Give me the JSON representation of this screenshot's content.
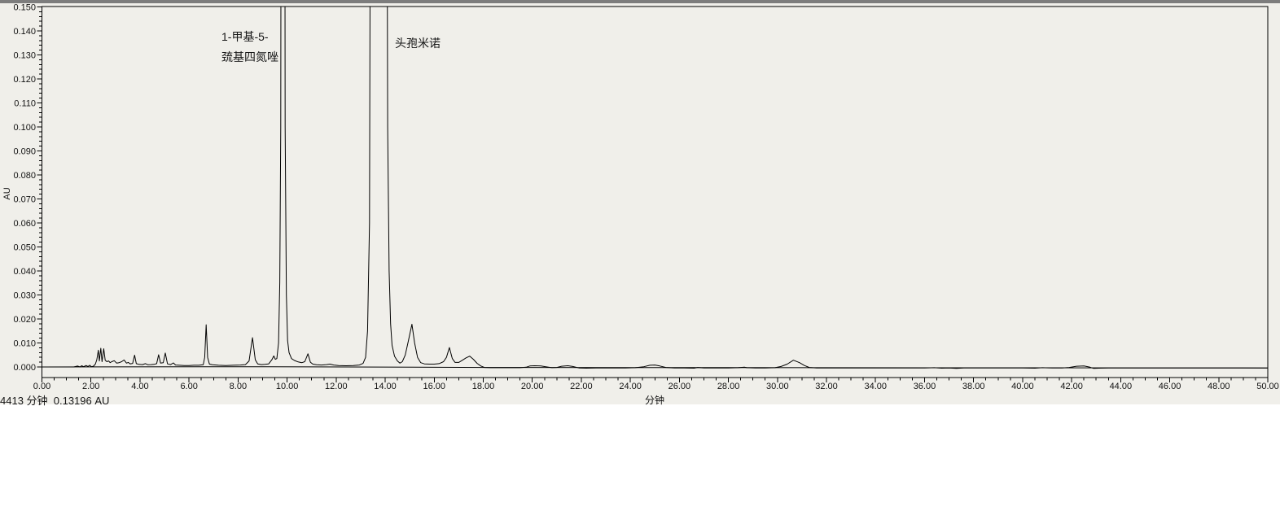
{
  "footer_note": "4413 分钟  0.13196 AU",
  "chart_data": {
    "type": "line",
    "title": "",
    "xlabel": "分钟",
    "ylabel": "AU",
    "xlim": [
      0,
      50
    ],
    "ylim": [
      -0.0045,
      0.15
    ],
    "x_major_tick_step": 2.0,
    "x_minor_tick_step": 0.5,
    "y_major_tick_step": 0.01,
    "y_minor_tick_step": 0.002,
    "grid": false,
    "line_color": "#000000",
    "annotations": [
      {
        "label_lines": [
          "1-甲基-5-",
          "巯基四氮唑"
        ],
        "peak_time_min": 9.8,
        "peak_off_scale": true
      },
      {
        "label_lines": [
          "头孢米诺"
        ],
        "peak_time_min": 13.7,
        "peak_off_scale": true
      }
    ],
    "series": [
      {
        "name": "signal",
        "points": [
          [
            0,
            0
          ],
          [
            0.5,
            0
          ],
          [
            1.0,
            0
          ],
          [
            1.3,
            0
          ],
          [
            1.45,
            0.0004
          ],
          [
            1.55,
            0
          ],
          [
            1.62,
            0.0005
          ],
          [
            1.7,
            0.0001
          ],
          [
            1.8,
            0.0006
          ],
          [
            1.88,
            0.0002
          ],
          [
            1.95,
            0.0007
          ],
          [
            2.02,
            0.0001
          ],
          [
            2.1,
            0.0003
          ],
          [
            2.18,
            0.0012
          ],
          [
            2.24,
            0.003
          ],
          [
            2.3,
            0.007
          ],
          [
            2.34,
            0.0025
          ],
          [
            2.4,
            0.0078
          ],
          [
            2.45,
            0.0022
          ],
          [
            2.52,
            0.0076
          ],
          [
            2.58,
            0.0028
          ],
          [
            2.65,
            0.0022
          ],
          [
            2.72,
            0.0025
          ],
          [
            2.78,
            0.0018
          ],
          [
            2.85,
            0.0022
          ],
          [
            2.95,
            0.0026
          ],
          [
            3.05,
            0.0016
          ],
          [
            3.15,
            0.0018
          ],
          [
            3.25,
            0.0022
          ],
          [
            3.35,
            0.0029
          ],
          [
            3.45,
            0.0016
          ],
          [
            3.52,
            0.0019
          ],
          [
            3.6,
            0.0013
          ],
          [
            3.7,
            0.0015
          ],
          [
            3.78,
            0.0049
          ],
          [
            3.85,
            0.0014
          ],
          [
            3.95,
            0.0011
          ],
          [
            4.1,
            0.001
          ],
          [
            4.22,
            0.0014
          ],
          [
            4.32,
            0.0009
          ],
          [
            4.45,
            0.001
          ],
          [
            4.58,
            0.0011
          ],
          [
            4.68,
            0.0014
          ],
          [
            4.76,
            0.0051
          ],
          [
            4.84,
            0.0016
          ],
          [
            4.95,
            0.0018
          ],
          [
            5.03,
            0.0058
          ],
          [
            5.12,
            0.0013
          ],
          [
            5.25,
            0.001
          ],
          [
            5.36,
            0.0017
          ],
          [
            5.45,
            0.0008
          ],
          [
            5.6,
            0.0007
          ],
          [
            5.8,
            0.0006
          ],
          [
            6.0,
            0.0006
          ],
          [
            6.2,
            0.0007
          ],
          [
            6.4,
            0.0007
          ],
          [
            6.58,
            0.0009
          ],
          [
            6.64,
            0.004
          ],
          [
            6.7,
            0.0176
          ],
          [
            6.76,
            0.004
          ],
          [
            6.83,
            0.0012
          ],
          [
            6.95,
            0.0009
          ],
          [
            7.2,
            0.0007
          ],
          [
            7.5,
            0.0006
          ],
          [
            7.8,
            0.0007
          ],
          [
            8.1,
            0.0008
          ],
          [
            8.3,
            0.001
          ],
          [
            8.45,
            0.0025
          ],
          [
            8.59,
            0.0122
          ],
          [
            8.7,
            0.003
          ],
          [
            8.8,
            0.0013
          ],
          [
            8.95,
            0.001
          ],
          [
            9.1,
            0.0011
          ],
          [
            9.25,
            0.0013
          ],
          [
            9.38,
            0.003
          ],
          [
            9.46,
            0.0046
          ],
          [
            9.52,
            0.0032
          ],
          [
            9.58,
            0.0035
          ],
          [
            9.65,
            0.01
          ],
          [
            9.7,
            0.035
          ],
          [
            9.74,
            0.1
          ],
          [
            9.76,
            0.28
          ],
          [
            9.9,
            0.28
          ],
          [
            9.92,
            0.1
          ],
          [
            9.97,
            0.03
          ],
          [
            10.02,
            0.011
          ],
          [
            10.08,
            0.006
          ],
          [
            10.18,
            0.0035
          ],
          [
            10.3,
            0.0027
          ],
          [
            10.45,
            0.0021
          ],
          [
            10.6,
            0.0018
          ],
          [
            10.72,
            0.0022
          ],
          [
            10.85,
            0.0055
          ],
          [
            10.95,
            0.002
          ],
          [
            11.05,
            0.0012
          ],
          [
            11.2,
            0.0009
          ],
          [
            11.4,
            0.0008
          ],
          [
            11.6,
            0.001
          ],
          [
            11.75,
            0.0012
          ],
          [
            11.9,
            0.0008
          ],
          [
            12.1,
            0.0006
          ],
          [
            12.4,
            0.0005
          ],
          [
            12.7,
            0.0006
          ],
          [
            12.95,
            0.0008
          ],
          [
            13.1,
            0.0015
          ],
          [
            13.2,
            0.004
          ],
          [
            13.28,
            0.015
          ],
          [
            13.36,
            0.06
          ],
          [
            13.41,
            0.28
          ],
          [
            14.06,
            0.28
          ],
          [
            14.1,
            0.1
          ],
          [
            14.16,
            0.04
          ],
          [
            14.22,
            0.018
          ],
          [
            14.28,
            0.009
          ],
          [
            14.38,
            0.0045
          ],
          [
            14.5,
            0.0025
          ],
          [
            14.6,
            0.0016
          ],
          [
            14.7,
            0.0022
          ],
          [
            14.82,
            0.005
          ],
          [
            14.95,
            0.011
          ],
          [
            15.09,
            0.0178
          ],
          [
            15.2,
            0.01
          ],
          [
            15.32,
            0.004
          ],
          [
            15.45,
            0.0018
          ],
          [
            15.6,
            0.0013
          ],
          [
            15.8,
            0.0012
          ],
          [
            16.0,
            0.0012
          ],
          [
            16.2,
            0.0014
          ],
          [
            16.38,
            0.0022
          ],
          [
            16.5,
            0.004
          ],
          [
            16.62,
            0.0081
          ],
          [
            16.74,
            0.0035
          ],
          [
            16.85,
            0.0019
          ],
          [
            17.0,
            0.0019
          ],
          [
            17.15,
            0.0028
          ],
          [
            17.3,
            0.0038
          ],
          [
            17.45,
            0.0045
          ],
          [
            17.6,
            0.0032
          ],
          [
            17.75,
            0.0015
          ],
          [
            17.9,
            0.0004
          ],
          [
            18.05,
            -0.0002
          ],
          [
            18.3,
            -0.0003
          ],
          [
            18.6,
            -0.0003
          ],
          [
            18.9,
            -0.0003
          ],
          [
            19.2,
            -0.0003
          ],
          [
            19.5,
            -0.0003
          ],
          [
            19.75,
            -0.0001
          ],
          [
            19.9,
            0.0004
          ],
          [
            20.1,
            0.0005
          ],
          [
            20.35,
            0.0004
          ],
          [
            20.55,
            0.0001
          ],
          [
            20.8,
            -0.0003
          ],
          [
            21.0,
            -0.0002
          ],
          [
            21.2,
            0.0003
          ],
          [
            21.45,
            0.0005
          ],
          [
            21.65,
            0.0002
          ],
          [
            21.9,
            -0.0004
          ],
          [
            22.2,
            -0.0005
          ],
          [
            22.6,
            -0.0004
          ],
          [
            23.0,
            -0.0004
          ],
          [
            23.4,
            -0.0004
          ],
          [
            23.8,
            -0.0004
          ],
          [
            24.2,
            -0.0003
          ],
          [
            24.55,
            0.0001
          ],
          [
            24.8,
            0.0007
          ],
          [
            25.0,
            0.0008
          ],
          [
            25.2,
            0.0004
          ],
          [
            25.45,
            -0.0002
          ],
          [
            25.8,
            -0.0004
          ],
          [
            26.2,
            -0.0004
          ],
          [
            26.6,
            -0.0005
          ],
          [
            26.75,
            -0.0002
          ],
          [
            27.0,
            -0.0004
          ],
          [
            27.5,
            -0.0004
          ],
          [
            28.0,
            -0.0004
          ],
          [
            28.4,
            -0.0003
          ],
          [
            28.65,
            -0.0001
          ],
          [
            28.75,
            -0.0003
          ],
          [
            29.1,
            -0.0004
          ],
          [
            29.5,
            -0.0004
          ],
          [
            29.9,
            -0.0003
          ],
          [
            30.15,
            0.0002
          ],
          [
            30.4,
            0.0012
          ],
          [
            30.65,
            0.0028
          ],
          [
            30.9,
            0.0018
          ],
          [
            31.1,
            0.0006
          ],
          [
            31.3,
            -0.0002
          ],
          [
            31.6,
            -0.0004
          ],
          [
            32.0,
            -0.0004
          ],
          [
            32.5,
            -0.0004
          ],
          [
            33.0,
            -0.0004
          ],
          [
            33.5,
            -0.0004
          ],
          [
            34.0,
            -0.0004
          ],
          [
            34.5,
            -0.0004
          ],
          [
            35.0,
            -0.0004
          ],
          [
            35.5,
            -0.0004
          ],
          [
            36.0,
            -0.0004
          ],
          [
            36.4,
            -0.0003
          ],
          [
            36.7,
            -0.0005
          ],
          [
            37.0,
            -0.0004
          ],
          [
            37.3,
            -0.0006
          ],
          [
            37.6,
            -0.0004
          ],
          [
            38.0,
            -0.0004
          ],
          [
            38.5,
            -0.0004
          ],
          [
            39.0,
            -0.0004
          ],
          [
            39.5,
            -0.0004
          ],
          [
            40.0,
            -0.0004
          ],
          [
            40.5,
            -0.0005
          ],
          [
            40.8,
            -0.0003
          ],
          [
            41.2,
            -0.0004
          ],
          [
            41.6,
            -0.0004
          ],
          [
            41.9,
            -0.0002
          ],
          [
            42.2,
            0.0003
          ],
          [
            42.5,
            0.0004
          ],
          [
            42.75,
            -0.0001
          ],
          [
            42.9,
            -0.0006
          ],
          [
            43.1,
            -0.0005
          ],
          [
            43.5,
            -0.0004
          ],
          [
            44.0,
            -0.0004
          ],
          [
            44.5,
            -0.0004
          ],
          [
            45.0,
            -0.0004
          ],
          [
            45.5,
            -0.0004
          ],
          [
            46.0,
            -0.0004
          ],
          [
            46.5,
            -0.0004
          ],
          [
            47.0,
            -0.0004
          ],
          [
            47.5,
            -0.0004
          ],
          [
            48.0,
            -0.0004
          ],
          [
            48.5,
            -0.0004
          ],
          [
            49.0,
            -0.0004
          ],
          [
            49.5,
            -0.0004
          ],
          [
            50.0,
            -0.0004
          ]
        ]
      },
      {
        "name": "integration-baseline",
        "points": [
          [
            0,
            0
          ],
          [
            9.3,
            0.0001
          ],
          [
            18.1,
            -0.0002
          ],
          [
            50,
            -0.0004
          ]
        ]
      }
    ]
  }
}
